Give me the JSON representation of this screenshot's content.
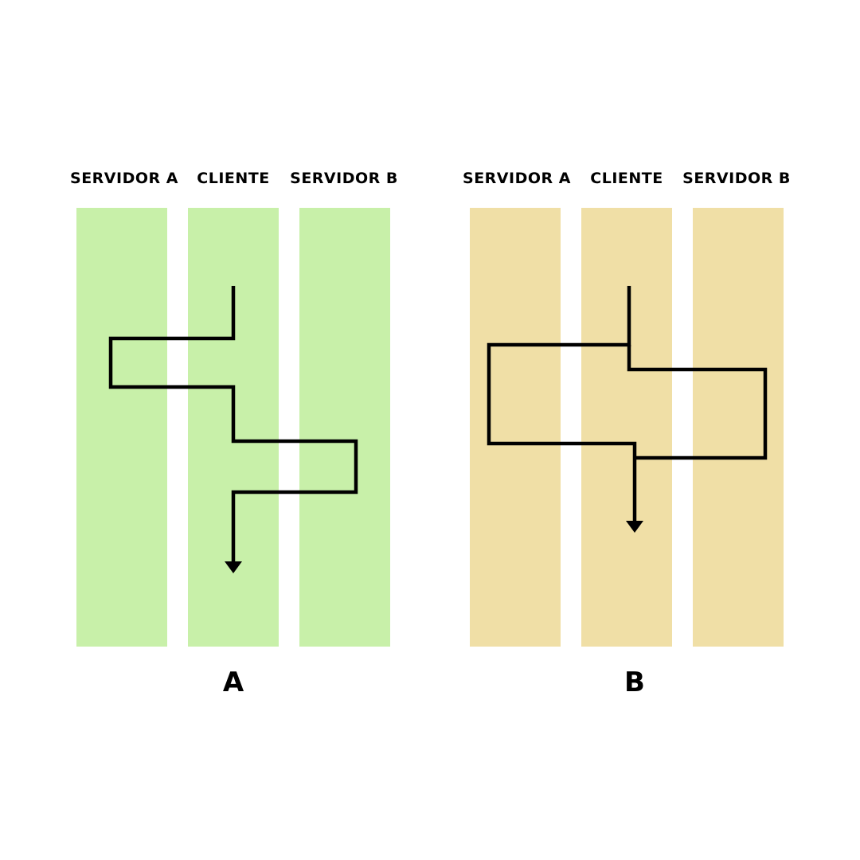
{
  "colors": {
    "diagram_a_lane": "#c8f0a9",
    "diagram_b_lane": "#f0dfa6",
    "line": "#000000"
  },
  "diagram_a": {
    "lanes": [
      "SERVIDOR A",
      "CLIENTE",
      "SERVIDOR B"
    ],
    "label": "A"
  },
  "diagram_b": {
    "lanes": [
      "SERVIDOR A",
      "CLIENTE",
      "SERVIDOR B"
    ],
    "label": "B"
  }
}
